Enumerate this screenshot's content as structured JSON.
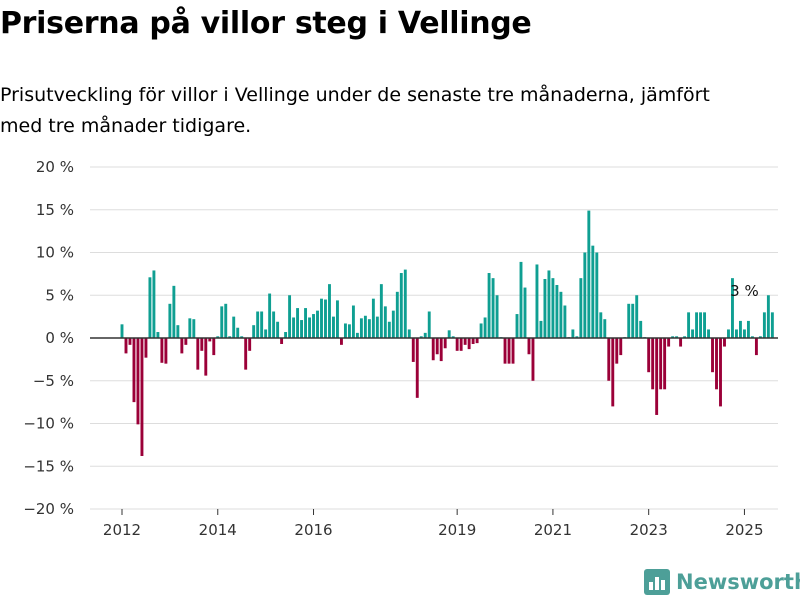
{
  "title": "Priserna på villor steg i Vellinge",
  "subtitle": "Prisutveckling för villor i Vellinge under de senaste tre månaderna, jämfört med tre månader tidigare.",
  "logo": {
    "text": "Newsworthy",
    "icon": "newsworthy-logo-icon"
  },
  "colors": {
    "positive": "#0f9f92",
    "negative": "#9b0038",
    "grid": "#dddddd",
    "axis": "#333333",
    "logo": "#4d9f98"
  },
  "chart_data": {
    "type": "bar",
    "title": "Priserna på villor steg i Vellinge",
    "ylim": [
      -20,
      20
    ],
    "y_ticks": [
      20,
      15,
      10,
      5,
      0,
      -5,
      -10,
      -15,
      -20
    ],
    "y_tick_labels": [
      "20 %",
      "15 %",
      "10 %",
      "5 %",
      "0 %",
      "−5 %",
      "−10 %",
      "−15 %",
      "−20 %"
    ],
    "x_tick_labels": [
      "2012",
      "2014",
      "2016",
      "2019",
      "2021",
      "2023",
      "2025"
    ],
    "x_tick_months": [
      0,
      24,
      48,
      84,
      108,
      132,
      156
    ],
    "grid": true,
    "annotation": {
      "text": "3 %",
      "month": 156
    },
    "start": "2012-01",
    "values": [
      1.6,
      -1.8,
      -0.8,
      -7.5,
      -10.1,
      -13.8,
      -2.3,
      7.1,
      7.9,
      0.7,
      -2.9,
      -3.0,
      4.0,
      6.1,
      1.5,
      -1.8,
      -0.8,
      2.3,
      2.2,
      -3.7,
      -1.5,
      -4.4,
      -0.4,
      -2.0,
      0.2,
      3.7,
      4.0,
      0.2,
      2.5,
      1.2,
      0.2,
      -3.7,
      -1.5,
      1.5,
      3.1,
      3.1,
      1.0,
      5.2,
      3.1,
      1.9,
      -0.7,
      0.7,
      5.0,
      2.4,
      3.5,
      2.1,
      3.5,
      2.4,
      2.8,
      3.2,
      4.6,
      4.5,
      6.3,
      2.5,
      4.4,
      -0.8,
      1.7,
      1.6,
      3.8,
      0.6,
      2.3,
      2.6,
      2.2,
      4.6,
      2.5,
      6.3,
      3.7,
      1.9,
      3.2,
      5.4,
      7.6,
      8.0,
      1.0,
      -2.8,
      -7.0,
      0.2,
      0.6,
      3.1,
      -2.6,
      -1.9,
      -2.7,
      -1.2,
      0.9,
      0.2,
      -1.5,
      -1.5,
      -0.8,
      -1.3,
      -0.7,
      -0.6,
      1.7,
      2.4,
      7.6,
      7.0,
      5.0,
      0.1,
      -3.0,
      -3.0,
      -3.0,
      2.8,
      8.9,
      5.9,
      -1.9,
      -5.0,
      8.6,
      2.0,
      6.9,
      7.9,
      7.0,
      6.2,
      5.4,
      3.8,
      0.1,
      1.0,
      0.2,
      7.0,
      10.0,
      14.9,
      10.8,
      10.0,
      3.0,
      2.2,
      -5.0,
      -8.0,
      -3.0,
      -2.0,
      0.1,
      4.0,
      4.0,
      5.0,
      2.0,
      0.1,
      -4.0,
      -6.0,
      -9.0,
      -6.0,
      -6.0,
      -1.0,
      0.2,
      0.2,
      -1.0,
      0.2,
      3.0,
      1.0,
      3.0,
      3.0,
      3.0,
      1.0,
      -4.0,
      -6.0,
      -8.0,
      -1.0,
      1.0,
      7.0,
      1.0,
      2.0,
      1.0,
      2.0,
      0.2,
      -2.0,
      0.2,
      3.0,
      5.0,
      3.0
    ]
  }
}
